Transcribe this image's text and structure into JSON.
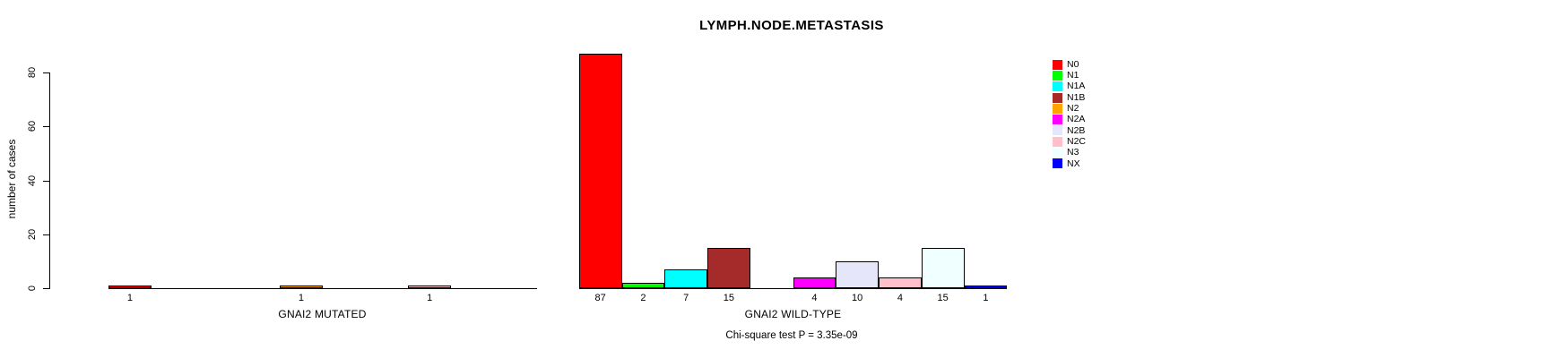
{
  "chart_data": {
    "type": "bar",
    "title": "LYMPH.NODE.METASTASIS",
    "ylabel": "number of cases",
    "xlabel": "",
    "ylim": [
      0,
      87
    ],
    "yticks": [
      0,
      20,
      40,
      60,
      80
    ],
    "grid": false,
    "legend_position": "right",
    "categories": [
      "N0",
      "N1",
      "N1A",
      "N1B",
      "N2",
      "N2A",
      "N2B",
      "N2C",
      "N3",
      "NX"
    ],
    "colors": [
      "#FF0000",
      "#00FF00",
      "#00FFFF",
      "#A52A2A",
      "#FFA500",
      "#FF00FF",
      "#E6E6FA",
      "#FFC0CB",
      "#F0FFFF",
      "#0000FF"
    ],
    "groups": [
      {
        "label": "GNAI2 MUTATED",
        "values": [
          1,
          0,
          0,
          0,
          1,
          0,
          0,
          1,
          0,
          0
        ]
      },
      {
        "label": "GNAI2 WILD-TYPE",
        "values": [
          87,
          2,
          7,
          15,
          0,
          4,
          10,
          4,
          15,
          1
        ]
      }
    ],
    "footnote": "Chi-square test P = 3.35e-09"
  }
}
